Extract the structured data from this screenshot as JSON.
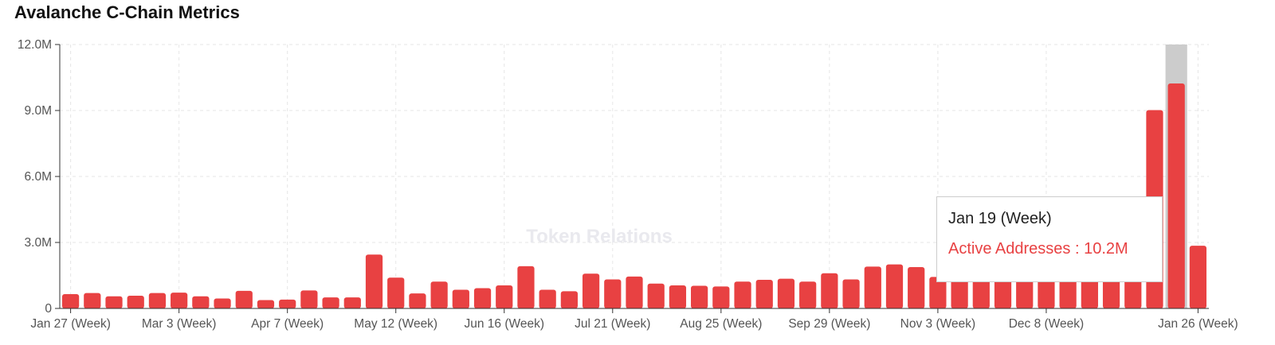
{
  "title": "Avalanche C-Chain Metrics",
  "watermark": "Token Relations",
  "colors": {
    "bar": "#e84142",
    "highlight": "#cccccc",
    "grid": "#e6e6e6",
    "axis": "#333333"
  },
  "tooltip": {
    "title": "Jan 19 (Week)",
    "series": "Active Addresses",
    "value": "10.2M"
  },
  "chart_data": {
    "type": "bar",
    "grid": true,
    "ylim": [
      0,
      12000000
    ],
    "yticks": [
      {
        "value": 0,
        "label": "0"
      },
      {
        "value": 3000000,
        "label": "3.0M"
      },
      {
        "value": 6000000,
        "label": "6.0M"
      },
      {
        "value": 9000000,
        "label": "9.0M"
      },
      {
        "value": 12000000,
        "label": "12.0M"
      }
    ],
    "xtick_labels": [
      {
        "index": 0,
        "label": "Jan 27 (Week)"
      },
      {
        "index": 5,
        "label": "Mar 3 (Week)"
      },
      {
        "index": 10,
        "label": "Apr 7 (Week)"
      },
      {
        "index": 15,
        "label": "May 12 (Week)"
      },
      {
        "index": 20,
        "label": "Jun 16 (Week)"
      },
      {
        "index": 25,
        "label": "Jul 21 (Week)"
      },
      {
        "index": 30,
        "label": "Aug 25 (Week)"
      },
      {
        "index": 35,
        "label": "Sep 29 (Week)"
      },
      {
        "index": 40,
        "label": "Nov 3 (Week)"
      },
      {
        "index": 45,
        "label": "Dec 8 (Week)"
      },
      {
        "index": 52,
        "label": "Jan 26 (Week)"
      }
    ],
    "highlighted_index": 51,
    "series": [
      {
        "name": "Active Addresses",
        "values": [
          650000,
          700000,
          550000,
          580000,
          700000,
          720000,
          550000,
          450000,
          800000,
          380000,
          400000,
          820000,
          500000,
          500000,
          2450000,
          1400000,
          680000,
          1220000,
          850000,
          920000,
          1050000,
          1920000,
          850000,
          780000,
          1580000,
          1320000,
          1450000,
          1130000,
          1050000,
          1030000,
          1000000,
          1220000,
          1300000,
          1350000,
          1220000,
          1600000,
          1320000,
          1900000,
          2000000,
          1880000,
          1430000,
          1400000,
          1400000,
          1400000,
          1400000,
          1400000,
          1400000,
          1400000,
          1400000,
          1400000,
          9020000,
          10230000,
          2850000
        ]
      }
    ]
  }
}
